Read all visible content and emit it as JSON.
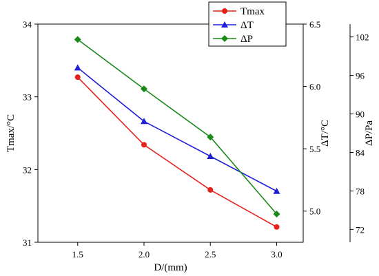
{
  "chart_data": {
    "type": "line",
    "xlabel": "D/(mm)",
    "x": [
      1.5,
      2.0,
      2.5,
      3.0
    ],
    "x_tick_labels": [
      "1.5",
      "2.0",
      "2.5",
      "3.0"
    ],
    "xlim": [
      1.2,
      3.2
    ],
    "axes": {
      "left": {
        "label": "Tmax/°C",
        "range": [
          31,
          34
        ],
        "ticks": [
          31,
          32,
          33,
          34
        ],
        "tick_labels": [
          "31",
          "32",
          "33",
          "34"
        ]
      },
      "right1": {
        "label": "ΔT/°C",
        "range": [
          4.75,
          6.5
        ],
        "ticks": [
          5.0,
          5.5,
          6.0,
          6.5
        ],
        "tick_labels": [
          "5.0",
          "5.5",
          "6.0",
          "6.5"
        ]
      },
      "right2": {
        "label": "ΔP/Pa",
        "range": [
          70,
          104
        ],
        "ticks": [
          72,
          78,
          84,
          90,
          96,
          102
        ],
        "tick_labels": [
          "72",
          "78",
          "84",
          "90",
          "96",
          "102"
        ]
      }
    },
    "series": [
      {
        "name": "Tmax",
        "axis": "left",
        "color": "#e8201c",
        "marker": "circle",
        "values": [
          33.27,
          32.34,
          31.72,
          31.21
        ]
      },
      {
        "name": "ΔT",
        "axis": "right1",
        "color": "#1f1fd6",
        "marker": "triangle",
        "values": [
          6.15,
          5.72,
          5.44,
          5.16
        ]
      },
      {
        "name": "ΔP",
        "axis": "right2",
        "color": "#1a8a1a",
        "marker": "diamond",
        "values": [
          101.6,
          93.9,
          86.4,
          74.4
        ]
      }
    ],
    "legend_position": "top-right",
    "grid": false
  }
}
